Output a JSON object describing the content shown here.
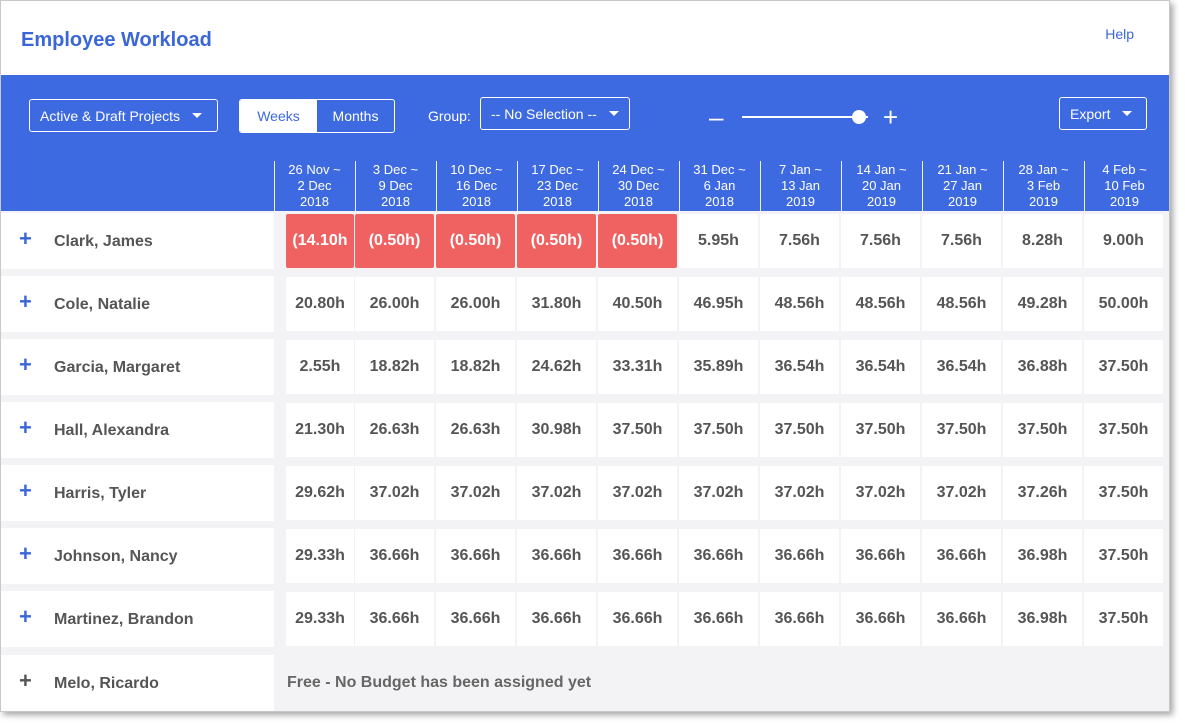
{
  "title": "Employee Workload",
  "help_label": "Help",
  "toolbar": {
    "projects_filter": "Active & Draft Projects",
    "weeks_label": "Weeks",
    "months_label": "Months",
    "group_label": "Group:",
    "group_value": "-- No Selection --",
    "zoom_minus": "–",
    "zoom_plus": "+",
    "export_label": "Export"
  },
  "columns": [
    {
      "l1": "26 Nov ~",
      "l2": "2 Dec",
      "l3": "2018"
    },
    {
      "l1": "3 Dec ~",
      "l2": "9 Dec",
      "l3": "2018"
    },
    {
      "l1": "10 Dec ~",
      "l2": "16 Dec",
      "l3": "2018"
    },
    {
      "l1": "17 Dec ~",
      "l2": "23 Dec",
      "l3": "2018"
    },
    {
      "l1": "24 Dec ~",
      "l2": "30 Dec",
      "l3": "2018"
    },
    {
      "l1": "31 Dec ~",
      "l2": "6 Jan",
      "l3": "2018"
    },
    {
      "l1": "7 Jan ~",
      "l2": "13 Jan",
      "l3": "2019"
    },
    {
      "l1": "14 Jan ~",
      "l2": "20 Jan",
      "l3": "2019"
    },
    {
      "l1": "21 Jan ~",
      "l2": "27 Jan",
      "l3": "2019"
    },
    {
      "l1": "28 Jan ~",
      "l2": "3 Feb",
      "l3": "2019"
    },
    {
      "l1": "4 Feb ~",
      "l2": "10 Feb",
      "l3": "2019"
    }
  ],
  "rows": [
    {
      "name": "Clark, James",
      "values": [
        "(14.10h",
        "(0.50h)",
        "(0.50h)",
        "(0.50h)",
        "(0.50h)",
        "5.95h",
        "7.56h",
        "7.56h",
        "7.56h",
        "8.28h",
        "9.00h"
      ],
      "over": [
        true,
        true,
        true,
        true,
        true,
        false,
        false,
        false,
        false,
        false,
        false
      ]
    },
    {
      "name": "Cole, Natalie",
      "values": [
        "20.80h",
        "26.00h",
        "26.00h",
        "31.80h",
        "40.50h",
        "46.95h",
        "48.56h",
        "48.56h",
        "48.56h",
        "49.28h",
        "50.00h"
      ]
    },
    {
      "name": "Garcia, Margaret",
      "values": [
        "2.55h",
        "18.82h",
        "18.82h",
        "24.62h",
        "33.31h",
        "35.89h",
        "36.54h",
        "36.54h",
        "36.54h",
        "36.88h",
        "37.50h"
      ]
    },
    {
      "name": "Hall, Alexandra",
      "values": [
        "21.30h",
        "26.63h",
        "26.63h",
        "30.98h",
        "37.50h",
        "37.50h",
        "37.50h",
        "37.50h",
        "37.50h",
        "37.50h",
        "37.50h"
      ]
    },
    {
      "name": "Harris, Tyler",
      "values": [
        "29.62h",
        "37.02h",
        "37.02h",
        "37.02h",
        "37.02h",
        "37.02h",
        "37.02h",
        "37.02h",
        "37.02h",
        "37.26h",
        "37.50h"
      ]
    },
    {
      "name": "Johnson, Nancy",
      "values": [
        "29.33h",
        "36.66h",
        "36.66h",
        "36.66h",
        "36.66h",
        "36.66h",
        "36.66h",
        "36.66h",
        "36.66h",
        "36.98h",
        "37.50h"
      ]
    },
    {
      "name": "Martinez, Brandon",
      "values": [
        "29.33h",
        "36.66h",
        "36.66h",
        "36.66h",
        "36.66h",
        "36.66h",
        "36.66h",
        "36.66h",
        "36.66h",
        "36.98h",
        "37.50h"
      ]
    },
    {
      "name": "Melo, Ricardo",
      "free_text": "Free - No Budget has been assigned yet"
    }
  ],
  "colors": {
    "accent": "#3e6ae1",
    "overbooked": "#f06262"
  },
  "icons": {
    "expand": "plus-icon",
    "dropdown": "chevron-down-icon"
  }
}
